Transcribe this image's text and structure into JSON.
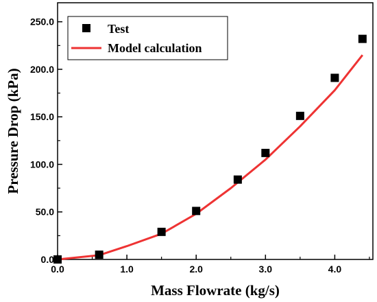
{
  "chart_data": {
    "type": "scatter",
    "title": "",
    "xlabel": "Mass Flowrate (kg/s)",
    "ylabel": "Pressure Drop (kPa)",
    "xlim": [
      0,
      4.55
    ],
    "ylim": [
      0,
      270
    ],
    "x_ticks": [
      0,
      1,
      2,
      3,
      4
    ],
    "x_tick_labels": [
      "0.0",
      "1.0",
      "2.0",
      "3.0",
      "4.0"
    ],
    "y_ticks": [
      0,
      50,
      100,
      150,
      200,
      250
    ],
    "y_tick_labels": [
      "0.0",
      "50.0",
      "100.0",
      "150.0",
      "200.0",
      "250.0"
    ],
    "grid": false,
    "legend_position": "top-left",
    "series": [
      {
        "name": "Test",
        "kind": "scatter",
        "marker": "square",
        "color": "#000000",
        "x": [
          0.0,
          0.6,
          1.5,
          2.0,
          2.6,
          3.0,
          3.5,
          4.0,
          4.4
        ],
        "y": [
          0.0,
          5.0,
          29.0,
          51.0,
          84.0,
          112.0,
          151.0,
          191.0,
          232.0
        ]
      },
      {
        "name": "Model calculation",
        "kind": "line",
        "color": "#ee3333",
        "x": [
          0.0,
          0.6,
          1.0,
          1.5,
          2.0,
          2.5,
          3.0,
          3.5,
          4.0,
          4.4
        ],
        "y": [
          0.0,
          4.5,
          14.0,
          27.0,
          48.0,
          75.0,
          105.0,
          140.0,
          178.0,
          215.0
        ]
      }
    ]
  }
}
